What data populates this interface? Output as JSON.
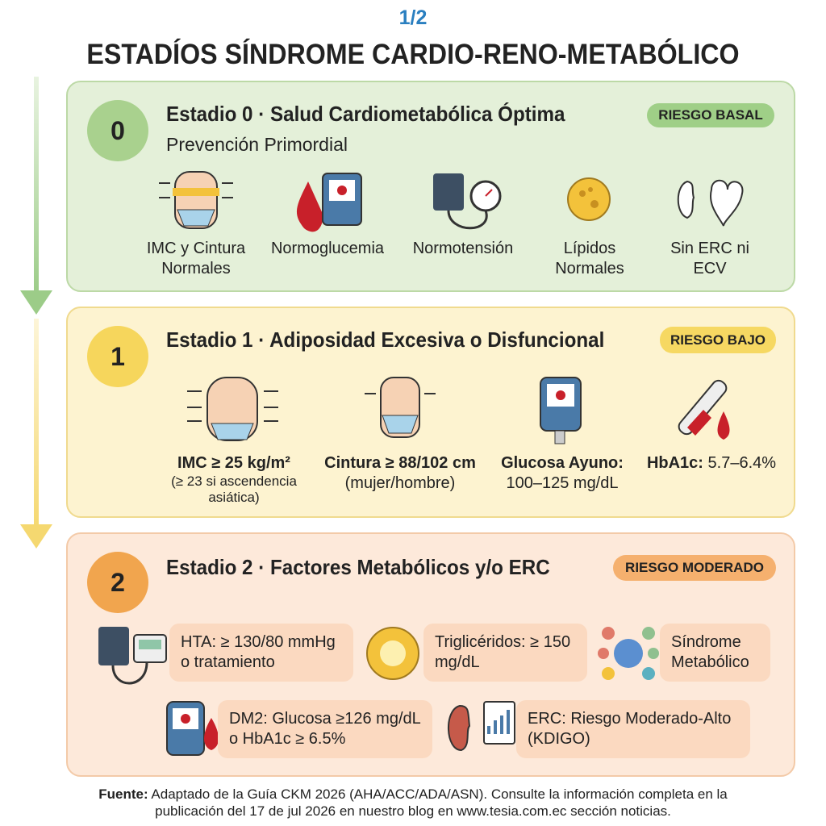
{
  "page_number": "1/2",
  "title": "ESTADÍOS SÍNDROME CARDIO-RENO-METABÓLICO",
  "stages": [
    {
      "number": "0",
      "title": "Estadio 0 · Salud Cardiometabólica Óptima",
      "subtitle": "Prevención Primordial",
      "risk": "RIESGO BASAL",
      "items": [
        {
          "label": "IMC y Cintura Normales"
        },
        {
          "label": "Normoglucemia"
        },
        {
          "label": "Normotensión"
        },
        {
          "label": "Lípidos Normales"
        },
        {
          "label": "Sin ERC ni ECV"
        }
      ]
    },
    {
      "number": "1",
      "title": "Estadio 1 · Adiposidad Excesiva o Disfuncional",
      "risk": "RIESGO BAJO",
      "items": [
        {
          "label": "IMC ≥ 25 kg/m²",
          "note": "(≥ 23 si ascendencia asiática)"
        },
        {
          "label": "Cintura ≥ 88/102 cm",
          "note": "(mujer/hombre)"
        },
        {
          "label": "Glucosa Ayuno:",
          "note": "100–125 mg/dL"
        },
        {
          "label": "HbA1c:",
          "note": "5.7–6.4%"
        }
      ]
    },
    {
      "number": "2",
      "title": "Estadio 2 · Factores Metabólicos y/o ERC",
      "risk": "RIESGO MODERADO",
      "items": [
        {
          "label": "HTA: ≥ 130/80 mmHg o tratamiento"
        },
        {
          "label": "Triglicéridos: ≥ 150 mg/dL"
        },
        {
          "label": "Síndrome Metabólico"
        },
        {
          "label": "DM2: Glucosa ≥126 mg/dL o HbA1c ≥ 6.5%"
        },
        {
          "label": "ERC: Riesgo Moderado-Alto (KDIGO)"
        }
      ]
    }
  ],
  "footer": {
    "label": "Fuente:",
    "text": "Adaptado de la Guía CKM 2026 (AHA/ACC/ADA/ASN). Consulte la información completa en la publicación del 17 de jul 2026 en nuestro blog en www.tesia.com.ec sección noticias."
  }
}
